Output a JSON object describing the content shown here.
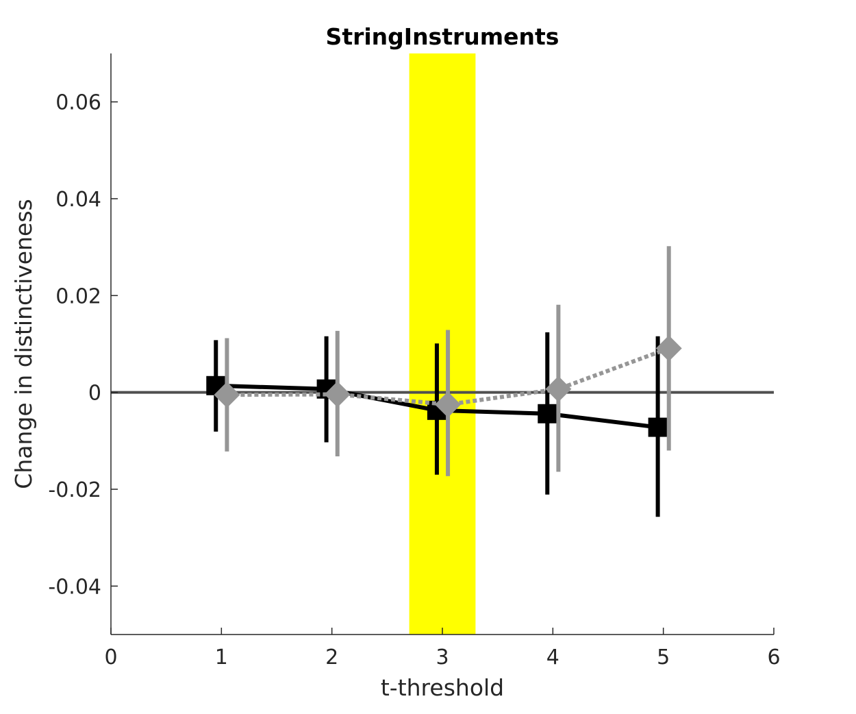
{
  "chart_data": {
    "type": "line",
    "title": "StringInstruments",
    "xlabel": "t-threshold",
    "ylabel": "Change in distinctiveness",
    "xlim": [
      0,
      6
    ],
    "ylim": [
      -0.05,
      0.07
    ],
    "xticks": [
      0,
      1,
      2,
      3,
      4,
      5,
      6
    ],
    "xtick_labels": [
      "0",
      "1",
      "2",
      "3",
      "4",
      "5",
      "6"
    ],
    "yticks": [
      -0.04,
      -0.02,
      0,
      0.02,
      0.04,
      0.06
    ],
    "ytick_labels": [
      "-0.04",
      "-0.02",
      "0",
      "0.02",
      "0.04",
      "0.06"
    ],
    "grid": false,
    "highlight_band": {
      "x_from": 2.7,
      "x_to": 3.3,
      "color": "#ffff00"
    },
    "reference_line": {
      "y": 0,
      "color": "#505050"
    },
    "series": [
      {
        "color": "#000000",
        "marker": "square",
        "line_style": "solid",
        "x": [
          0.95,
          1.95,
          2.95,
          3.95,
          4.95
        ],
        "y": [
          0.0014,
          0.0007,
          -0.0037,
          -0.0044,
          -0.0072
        ],
        "err_low": [
          -0.0081,
          -0.0103,
          -0.017,
          -0.0211,
          -0.0257
        ],
        "err_high": [
          0.0108,
          0.0116,
          0.0101,
          0.0124,
          0.0116
        ]
      },
      {
        "color": "#969696",
        "marker": "diamond",
        "line_style": "dotted",
        "x": [
          1.05,
          2.05,
          3.05,
          4.05,
          5.05
        ],
        "y": [
          -0.0005,
          -0.0004,
          -0.0025,
          0.0007,
          0.0091
        ],
        "err_low": [
          -0.0122,
          -0.0132,
          -0.0173,
          -0.0164,
          -0.012
        ],
        "err_high": [
          0.0112,
          0.0127,
          0.0129,
          0.0181,
          0.0302
        ]
      }
    ]
  }
}
